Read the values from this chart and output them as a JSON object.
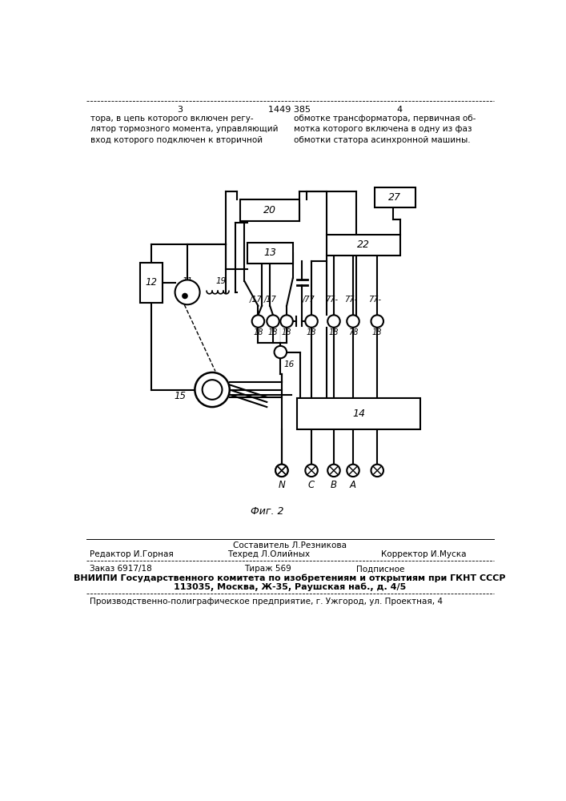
{
  "bg_color": "#ffffff",
  "line_color": "#000000",
  "text_color": "#000000",
  "header_num_left": "3",
  "header_patent": "1449 385",
  "header_num_right": "4",
  "header_text_left": "тора, в цепь которого включен регу-\nлятор тормозного момента, управляющий\nвход которого подключен к вторичной",
  "header_text_right": "обмотке трансформатора, первичная об-\nмотка которого включена в одну из фаз\nобмотки статора асинхронной машины.",
  "fig_label": "Фиг. 2",
  "footer_composer": "Составитель Л.Резникова",
  "footer_editor_label": "Редактор И.Горная",
  "footer_techred_label": "Техред Л.Олийных",
  "footer_corrector_label": "Корректор И.Муска",
  "footer_order": "Заказ 6917/18",
  "footer_tirazh": "Тираж 569",
  "footer_podpisnoe": "Подписное",
  "footer_vniipи": "ВНИИПИ Государственного комитета по изобретениям и открытиям при ГКНТ СССР",
  "footer_address": "113035, Москва, Ж-35, Раушская наб., д. 4/5",
  "footer_factory": "Производственно-полиграфическое предприятие, г. Ужгород, ул. Проектная, 4"
}
